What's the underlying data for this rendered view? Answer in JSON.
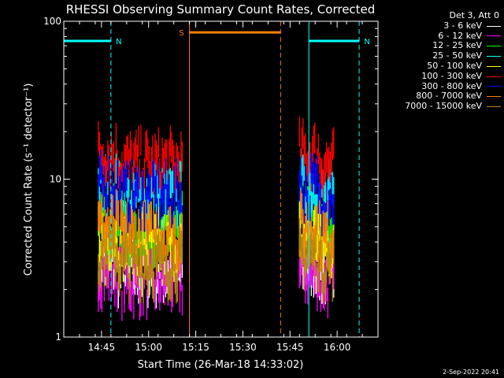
{
  "chart_data": {
    "type": "line",
    "title": "RHESSI Observing Summary Count Rates, Corrected",
    "xlabel": "Start Time (26-Mar-18 14:33:02)",
    "ylabel": "Corrected Count Rate (s⁻¹ detector⁻¹)",
    "y_scale": "log",
    "ylim": [
      1,
      100
    ],
    "y_ticks": [
      "1",
      "10",
      "100"
    ],
    "x_range_minutes": [
      "14:33",
      "16:13"
    ],
    "x_ticks": [
      "14:45",
      "15:00",
      "15:15",
      "15:30",
      "15:45",
      "16:00"
    ],
    "legend_header": "Det 3, Att 0",
    "legend_position": "top-right, outside plot",
    "series": [
      {
        "name": "3 - 6 keV",
        "color": "#ffffff",
        "level": 2.7
      },
      {
        "name": "6 - 12 keV",
        "color": "#ff00ff",
        "level": 2.3
      },
      {
        "name": "12 - 25 keV",
        "color": "#00ff00",
        "level": 5.0
      },
      {
        "name": "25 - 50 keV",
        "color": "#00ffff",
        "level": 8.0
      },
      {
        "name": "50 - 100 keV",
        "color": "#ffff00",
        "level": 4.0
      },
      {
        "name": "100 - 300 keV",
        "color": "#ff0000",
        "level": 13.0
      },
      {
        "name": "300 - 800 keV",
        "color": "#0000ff",
        "level": 8.0
      },
      {
        "name": "800 - 7000 keV",
        "color": "#ff8000",
        "level": 4.5
      },
      {
        "name": "7000 - 15000 keV",
        "color": "#b8860b",
        "level": 3.0
      }
    ],
    "data_intervals": [
      [
        "14:44",
        "15:11"
      ],
      [
        "15:48",
        "15:59"
      ]
    ],
    "annotations": [
      {
        "text": "N",
        "color": "#00ffff",
        "x_start": "14:33",
        "x_end": "14:48",
        "y": 75
      },
      {
        "text": "N",
        "color": "#00ffff",
        "x_start": "15:51",
        "x_end": "16:07",
        "y": 75
      },
      {
        "text": "S",
        "color": "#ff8000",
        "x_start": "15:13",
        "x_end": "15:42",
        "y": 85
      }
    ],
    "vertical_markers": [
      {
        "time": "14:33",
        "color": "#00ffff",
        "style": "solid"
      },
      {
        "time": "14:48",
        "color": "#00ffff",
        "style": "dashed"
      },
      {
        "time": "15:13",
        "color": "#ff8000",
        "style": "solid"
      },
      {
        "time": "15:42",
        "color": "#ff8000",
        "style": "dashed"
      },
      {
        "time": "15:51",
        "color": "#00ffff",
        "style": "solid"
      },
      {
        "time": "16:07",
        "color": "#00ffff",
        "style": "dashed"
      }
    ]
  },
  "footer": {
    "date": "2-Sep-2022 20:41"
  }
}
